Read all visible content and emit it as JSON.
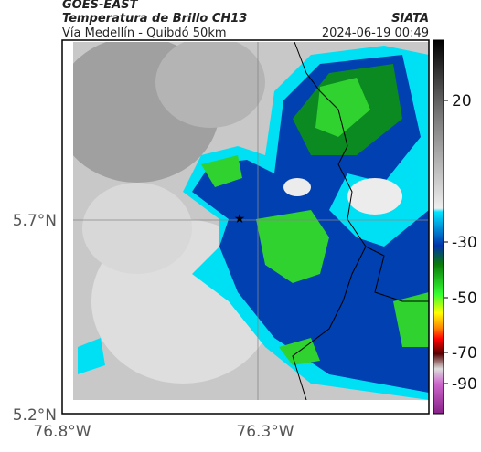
{
  "header": {
    "product": "GOES-EAST",
    "title": "Temperatura de Brillo CH13",
    "source": "SIATA",
    "route": "Vía Medellín - Quibdó 50km",
    "timestamp": "2024-06-19 00:49"
  },
  "axes": {
    "lat_labels": [
      "5.7°N",
      "5.2°N"
    ],
    "lon_labels": [
      "76.8°W",
      "76.3°W"
    ]
  },
  "colorbar": {
    "ticks": [
      "20",
      "-30",
      "-50",
      "-70",
      "-90"
    ]
  }
}
